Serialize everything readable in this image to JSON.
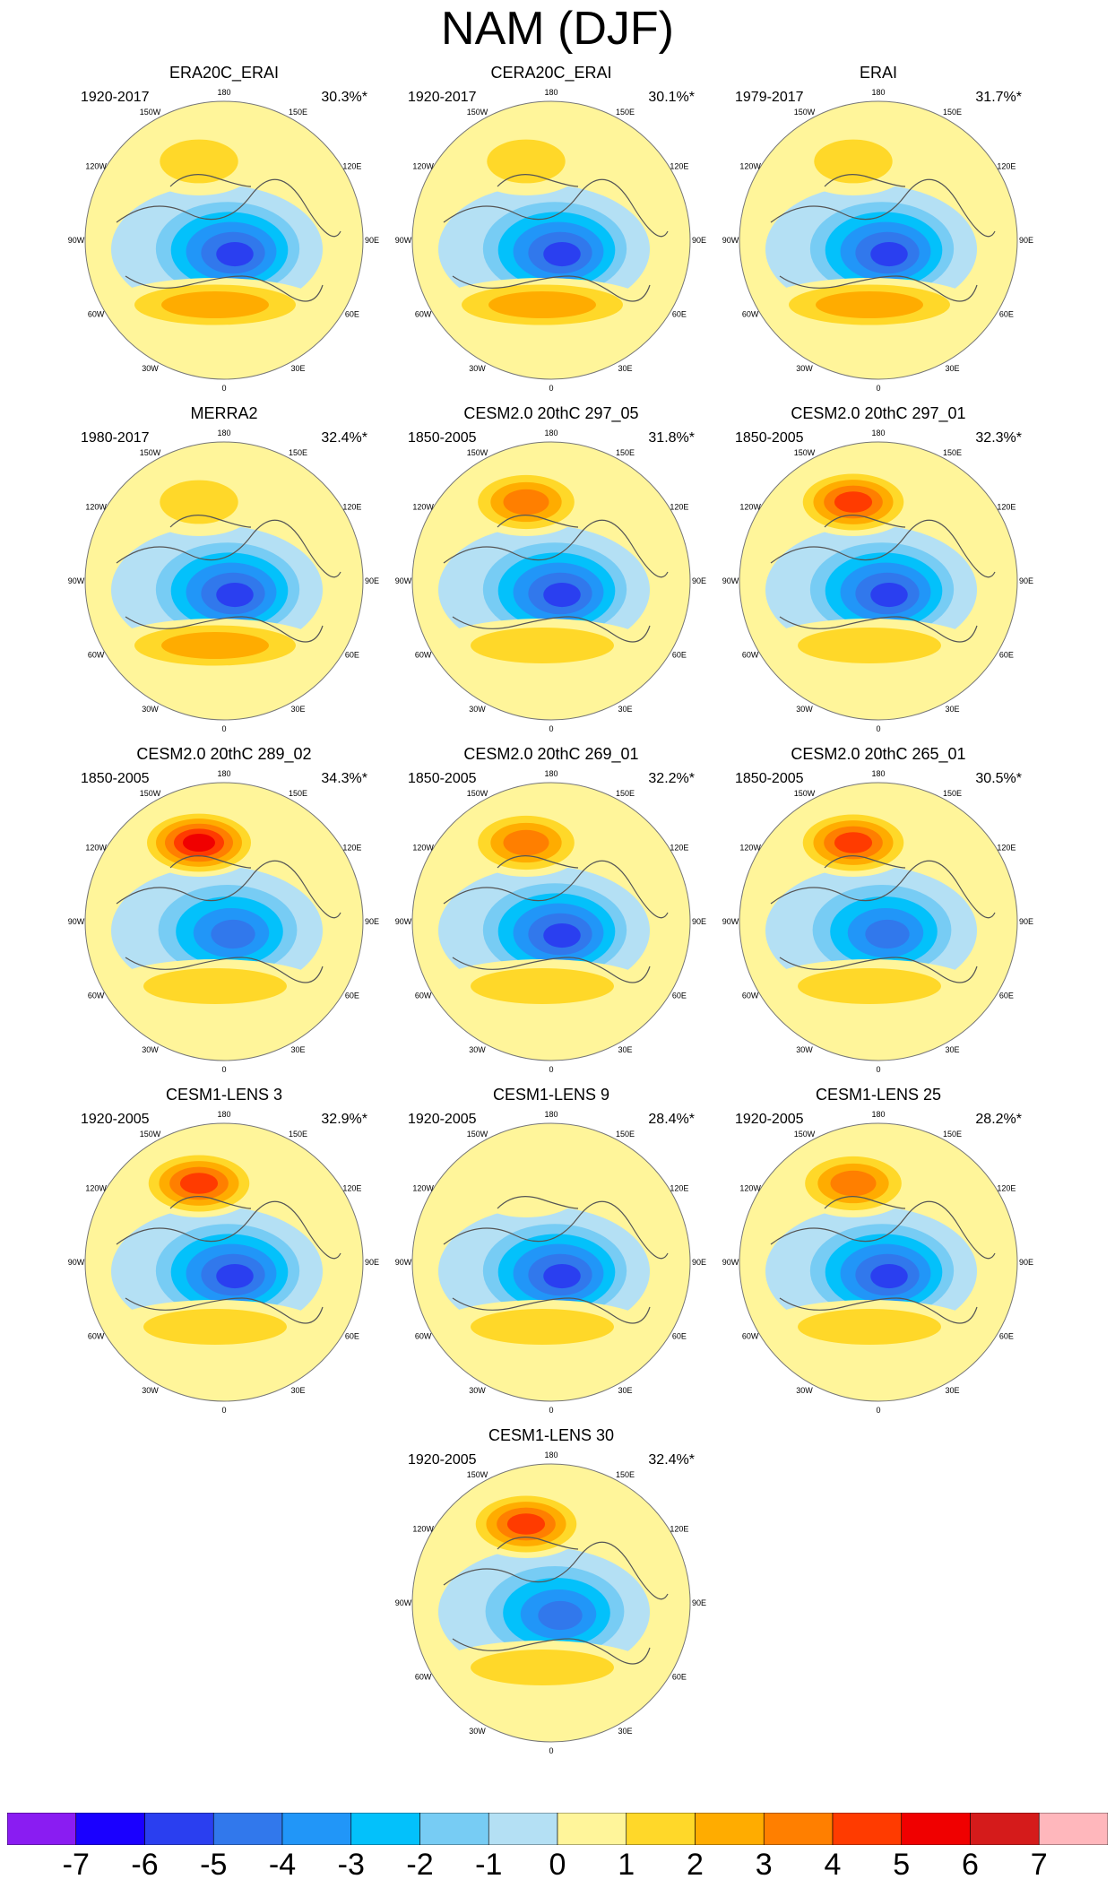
{
  "page": {
    "title": "NAM (DJF)"
  },
  "colors": {
    "scale": [
      "#8a1cf2",
      "#1a00ff",
      "#2a3ff0",
      "#3178ec",
      "#2196f8",
      "#03c1fb",
      "#77ccf4",
      "#b4e0f4",
      "#fff59a",
      "#ffd829",
      "#ffac00",
      "#ff7f00",
      "#ff3b00",
      "#f00000",
      "#d51b1b",
      "#ffb7bc"
    ],
    "coast": "#555555",
    "rim": "#777777"
  },
  "chart_data": {
    "type": "polar-contour-panels",
    "variable": "NAM (DJF) regression pattern",
    "colorbar": {
      "levels": [
        "-7",
        "-6",
        "-5",
        "-4",
        "-3",
        "-2",
        "-1",
        "0",
        "1",
        "2",
        "3",
        "4",
        "5",
        "6",
        "7"
      ]
    },
    "lon_labels": [
      "180",
      "150E",
      "120E",
      "90E",
      "60E",
      "30E",
      "0",
      "30W",
      "60W",
      "90W",
      "120W",
      "150W"
    ],
    "panels": [
      {
        "title": "ERA20C_ERAI",
        "period": "1920-2017",
        "variance": "30.3%*",
        "low_min": -5,
        "pac_max": 2,
        "atl_max": 3
      },
      {
        "title": "CERA20C_ERAI",
        "period": "1920-2017",
        "variance": "30.1%*",
        "low_min": -5,
        "pac_max": 2,
        "atl_max": 3
      },
      {
        "title": "ERAI",
        "period": "1979-2017",
        "variance": "31.7%*",
        "low_min": -5,
        "pac_max": 2,
        "atl_max": 3
      },
      {
        "title": "MERRA2",
        "period": "1980-2017",
        "variance": "32.4%*",
        "low_min": -5,
        "pac_max": 2,
        "atl_max": 3
      },
      {
        "title": "CESM2.0 20thC 297_05",
        "period": "1850-2005",
        "variance": "31.8%*",
        "low_min": -5,
        "pac_max": 4,
        "atl_max": 2
      },
      {
        "title": "CESM2.0 20thC 297_01",
        "period": "1850-2005",
        "variance": "32.3%*",
        "low_min": -5,
        "pac_max": 5,
        "atl_max": 2
      },
      {
        "title": "CESM2.0 20thC 289_02",
        "period": "1850-2005",
        "variance": "34.3%*",
        "low_min": -4,
        "pac_max": 6,
        "atl_max": 2
      },
      {
        "title": "CESM2.0 20thC 269_01",
        "period": "1850-2005",
        "variance": "32.2%*",
        "low_min": -5,
        "pac_max": 4,
        "atl_max": 2
      },
      {
        "title": "CESM2.0 20thC 265_01",
        "period": "1850-2005",
        "variance": "30.5%*",
        "low_min": -4,
        "pac_max": 5,
        "atl_max": 2
      },
      {
        "title": "CESM1-LENS 3",
        "period": "1920-2005",
        "variance": "32.9%*",
        "low_min": -5,
        "pac_max": 5,
        "atl_max": 2
      },
      {
        "title": "CESM1-LENS 9",
        "period": "1920-2005",
        "variance": "28.4%*",
        "low_min": -5,
        "pac_max": 1,
        "atl_max": 2
      },
      {
        "title": "CESM1-LENS 25",
        "period": "1920-2005",
        "variance": "28.2%*",
        "low_min": -5,
        "pac_max": 4,
        "atl_max": 2
      },
      {
        "title": "CESM1-LENS 30",
        "period": "1920-2005",
        "variance": "32.4%*",
        "low_min": -4,
        "pac_max": 5,
        "atl_max": 2
      }
    ]
  }
}
